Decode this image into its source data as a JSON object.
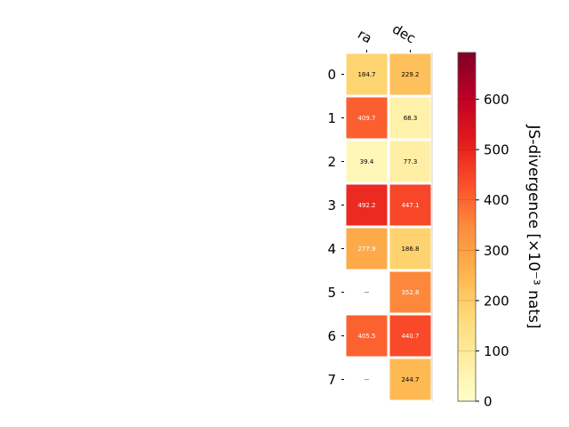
{
  "chart_data": {
    "type": "heatmap",
    "columns": [
      "ra",
      "dec"
    ],
    "rows": [
      "0",
      "1",
      "2",
      "3",
      "4",
      "5",
      "6",
      "7"
    ],
    "values": [
      [
        184.7,
        229.2
      ],
      [
        409.7,
        68.3
      ],
      [
        39.4,
        77.3
      ],
      [
        492.2,
        447.1
      ],
      [
        277.9,
        186.8
      ],
      [
        null,
        352.8
      ],
      [
        405.5,
        440.7
      ],
      [
        null,
        244.7
      ]
    ],
    "cell_labels": [
      [
        "184.7",
        "229.2"
      ],
      [
        "409.7",
        "68.3"
      ],
      [
        "39.4",
        "77.3"
      ],
      [
        "492.2",
        "447.1"
      ],
      [
        "277.9",
        "186.8"
      ],
      [
        "--",
        "352.8"
      ],
      [
        "405.5",
        "440.7"
      ],
      [
        "--",
        "244.7"
      ]
    ],
    "colorbar": {
      "label": "JS-divergence [×10⁻³ nats]",
      "range": [
        0,
        693
      ],
      "ticks": [
        0,
        100,
        200,
        300,
        400,
        500,
        600
      ],
      "tick_labels": [
        "0",
        "100",
        "200",
        "300",
        "400",
        "500",
        "600"
      ],
      "colormap": "YlOrRd"
    },
    "grid": false,
    "legend": "colorbar-right"
  }
}
